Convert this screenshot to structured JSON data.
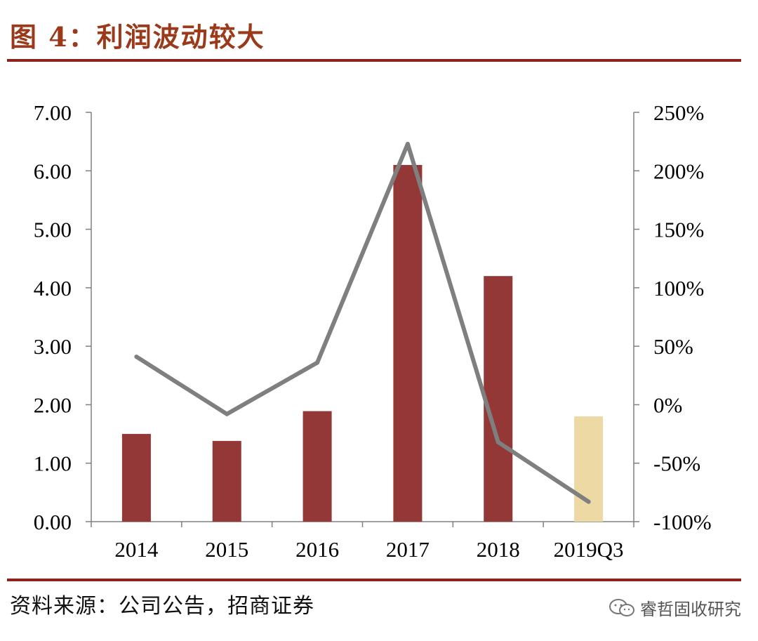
{
  "header": {
    "title": "图 4：利润波动较大"
  },
  "footer": {
    "source": "资料来源：公司公告，招商证券",
    "watermark": "睿哲固收研究"
  },
  "colors": {
    "bar": "#933737",
    "bar_highlight": "#ecd9a4",
    "line": "#7f7f7f",
    "rule": "#8b2323",
    "title": "#9a3a1a"
  },
  "chart_data": {
    "type": "bar",
    "categories": [
      "2014",
      "2015",
      "2016",
      "2017",
      "2018",
      "2019Q3"
    ],
    "series": [
      {
        "type": "bar",
        "axis": "left",
        "values": [
          1.5,
          1.38,
          1.89,
          6.1,
          4.2,
          1.8
        ],
        "highlight_last": true
      },
      {
        "type": "line",
        "axis": "right",
        "values": [
          0.41,
          -0.08,
          0.36,
          2.23,
          -0.32,
          -0.83
        ]
      }
    ],
    "y_left": {
      "min": 0,
      "max": 7,
      "ticks": [
        "0.00",
        "1.00",
        "2.00",
        "3.00",
        "4.00",
        "5.00",
        "6.00",
        "7.00"
      ]
    },
    "y_right": {
      "min": -1.0,
      "max": 2.5,
      "ticks": [
        "-100%",
        "-50%",
        "0%",
        "50%",
        "100%",
        "150%",
        "200%",
        "250%"
      ]
    },
    "grid": false,
    "legend": "none"
  }
}
